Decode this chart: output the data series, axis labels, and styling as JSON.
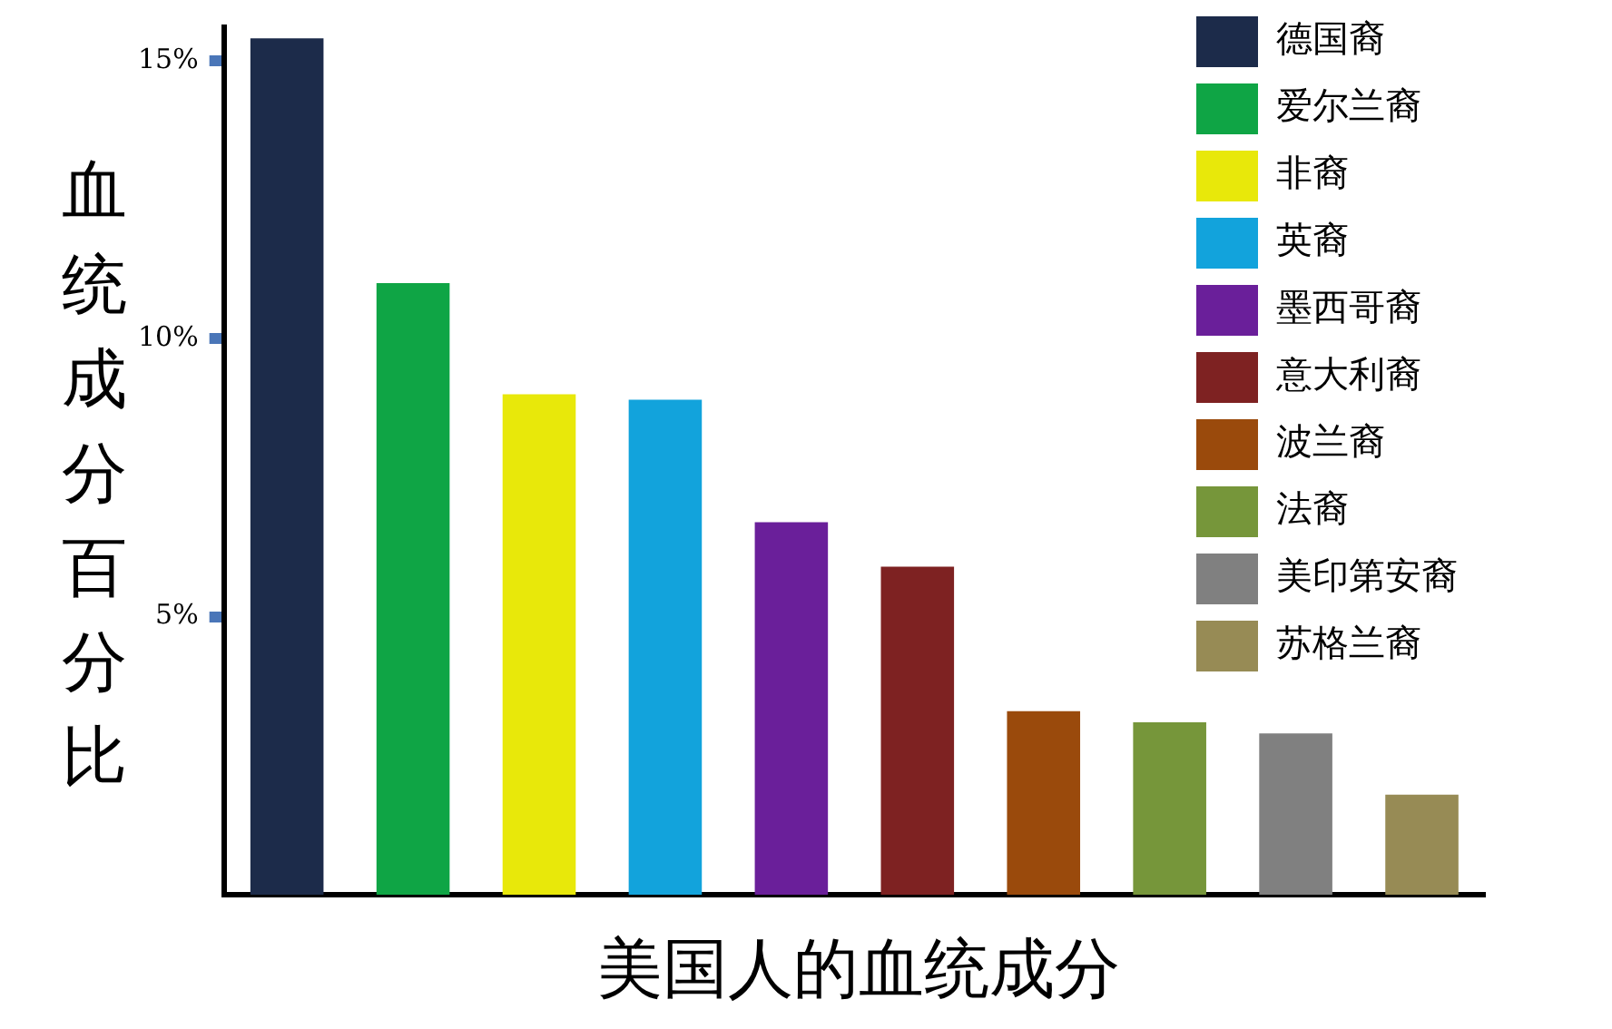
{
  "chart_data": {
    "type": "bar",
    "xlabel": "美国人的血统成分",
    "ylabel": "血统成分百分比",
    "categories": [
      null,
      null,
      null,
      null,
      null,
      null,
      null,
      null,
      null,
      null
    ],
    "series": [
      {
        "name": "德国裔",
        "color": "#1c2b4a",
        "values": [
          15.4,
          null,
          null,
          null,
          null,
          null,
          null,
          null,
          null,
          null
        ]
      },
      {
        "name": "爱尔兰裔",
        "color": "#0fa545",
        "values": [
          null,
          11.0,
          null,
          null,
          null,
          null,
          null,
          null,
          null,
          null
        ]
      },
      {
        "name": "非裔",
        "color": "#e8e80a",
        "values": [
          null,
          null,
          9.0,
          null,
          null,
          null,
          null,
          null,
          null,
          null
        ]
      },
      {
        "name": "英裔",
        "color": "#12a3dc",
        "values": [
          null,
          null,
          null,
          8.9,
          null,
          null,
          null,
          null,
          null,
          null
        ]
      },
      {
        "name": "墨西哥裔",
        "color": "#6a1f9a",
        "values": [
          null,
          null,
          null,
          null,
          6.7,
          null,
          null,
          null,
          null,
          null
        ]
      },
      {
        "name": "意大利裔",
        "color": "#7e2222",
        "values": [
          null,
          null,
          null,
          null,
          null,
          5.9,
          null,
          null,
          null,
          null
        ]
      },
      {
        "name": "波兰裔",
        "color": "#9a4a0c",
        "values": [
          null,
          null,
          null,
          null,
          null,
          null,
          3.3,
          null,
          null,
          null
        ]
      },
      {
        "name": "法裔",
        "color": "#76963a",
        "values": [
          null,
          null,
          null,
          null,
          null,
          null,
          null,
          3.1,
          null,
          null
        ]
      },
      {
        "name": "美印第安裔",
        "color": "#808080",
        "values": [
          null,
          null,
          null,
          null,
          null,
          null,
          null,
          null,
          2.9,
          null
        ]
      },
      {
        "name": "苏格兰裔",
        "color": "#978b55",
        "values": [
          null,
          null,
          null,
          null,
          null,
          null,
          null,
          null,
          null,
          1.8
        ]
      }
    ],
    "ylim": [
      0,
      15.6
    ],
    "yticks": [
      {
        "value": 5,
        "label": "5%"
      },
      {
        "value": 10,
        "label": "10%"
      },
      {
        "value": 15,
        "label": "15%"
      }
    ],
    "grid": false,
    "legend": "top right",
    "tick_labels": "y"
  }
}
